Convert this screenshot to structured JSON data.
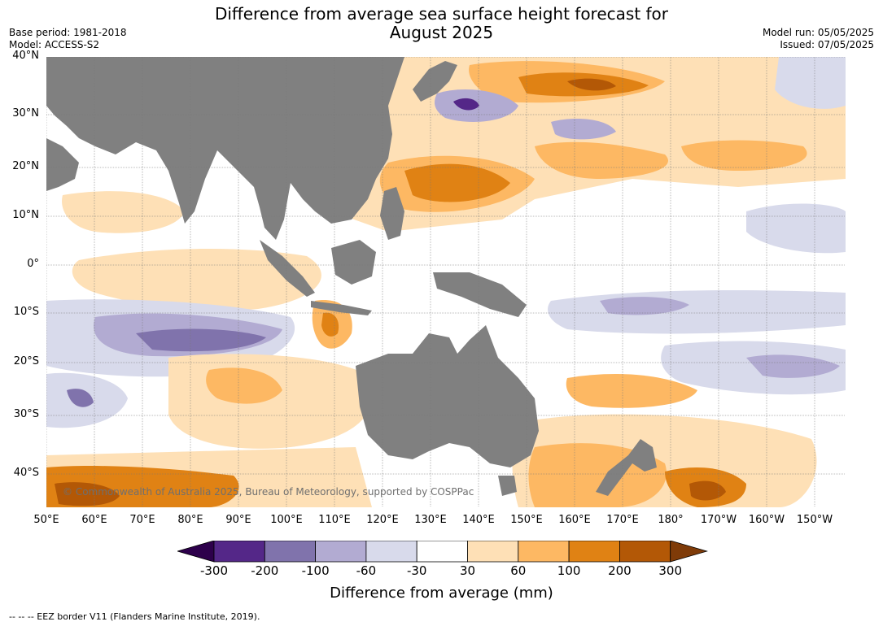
{
  "header": {
    "title_line1": "Difference from average sea surface height forecast for",
    "title_line2": "August 2025",
    "base_period": "Base period: 1981-2018",
    "model": "Model: ACCESS-S2",
    "model_run": "Model run: 05/05/2025",
    "issued": "Issued: 07/05/2025"
  },
  "map": {
    "lat_labels": [
      "40°N",
      "30°N",
      "20°N",
      "10°N",
      "0°",
      "10°S",
      "20°S",
      "30°S",
      "40°S"
    ],
    "lon_labels": [
      "50°E",
      "60°E",
      "70°E",
      "80°E",
      "90°E",
      "100°E",
      "110°E",
      "120°E",
      "130°E",
      "140°E",
      "150°E",
      "160°E",
      "170°E",
      "180°",
      "170°W",
      "160°W",
      "150°W"
    ],
    "land_color": "#808080",
    "copyright": "© Commonwealth of Australia 2025, Bureau of Meteorology, supported by COSPPac"
  },
  "colorbar": {
    "colors": [
      "#2d004b",
      "#542788",
      "#8073ac",
      "#b2abd2",
      "#d8daeb",
      "#ffffff",
      "#fee0b6",
      "#fdb863",
      "#e08214",
      "#b35806",
      "#7f3b08"
    ],
    "ticks": [
      "-300",
      "-200",
      "-100",
      "-60",
      "-30",
      "30",
      "60",
      "100",
      "200",
      "300"
    ],
    "title": "Difference from average (mm)"
  },
  "footer": {
    "eez_note": "--  --  -- EEZ border V11 (Flanders Marine Institute, 2019)."
  }
}
